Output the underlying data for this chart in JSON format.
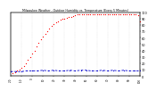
{
  "title": "Milwaukee Weather - Outdoor Humidity vs. Temperature (Every 5 Minutes)",
  "background_color": "#ffffff",
  "grid_color": "#aaaaaa",
  "plot_bg": "#ffffff",
  "red_color": "#ff0000",
  "blue_color": "#0000cc",
  "x_min": -20,
  "x_max": 100,
  "y_min": 0,
  "y_max": 100,
  "red_x": [
    -18,
    -16,
    -14,
    -12,
    -10,
    -8,
    -6,
    -4,
    -2,
    0,
    2,
    4,
    6,
    8,
    10,
    12,
    14,
    16,
    18,
    20,
    22,
    24,
    26,
    28,
    30,
    32,
    34,
    36,
    38,
    40,
    42,
    44,
    46,
    48,
    50,
    52,
    54,
    56,
    58,
    60,
    62,
    64,
    66,
    68,
    70,
    72,
    74,
    76,
    78,
    80,
    82,
    84,
    86,
    88,
    90,
    92,
    94,
    96,
    98,
    100
  ],
  "red_y": [
    5,
    6,
    8,
    10,
    13,
    16,
    20,
    25,
    30,
    35,
    40,
    46,
    52,
    57,
    62,
    66,
    70,
    74,
    78,
    81,
    84,
    86,
    88,
    89,
    90,
    91,
    92,
    93,
    94,
    95,
    96,
    96,
    97,
    97,
    97,
    97,
    97,
    97,
    97,
    97,
    97,
    97,
    97,
    97,
    97,
    97,
    97,
    97,
    97,
    97,
    97,
    97,
    97,
    97,
    97,
    97,
    97,
    97,
    95,
    85
  ],
  "blue_x": [
    -20,
    -15,
    -10,
    -5,
    0,
    5,
    10,
    15,
    20,
    25,
    30,
    35,
    40,
    45,
    50,
    55,
    60,
    65,
    70,
    75,
    80,
    85,
    90,
    95,
    100
  ],
  "blue_y": [
    7,
    7,
    7,
    8,
    8,
    8,
    9,
    8,
    9,
    8,
    8,
    9,
    8,
    9,
    9,
    8,
    8,
    9,
    8,
    9,
    8,
    9,
    8,
    8,
    8
  ],
  "yticks": [
    0,
    10,
    20,
    30,
    40,
    50,
    60,
    70,
    80,
    90,
    100
  ],
  "xticks": [
    -20,
    -10,
    0,
    10,
    20,
    30,
    40,
    50,
    60,
    70,
    80,
    90,
    100
  ]
}
